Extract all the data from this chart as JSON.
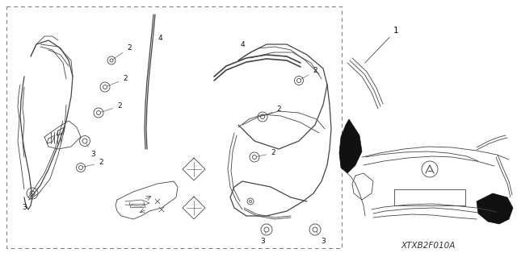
{
  "fig_width": 6.4,
  "fig_height": 3.19,
  "dpi": 100,
  "bg_color": "#ffffff",
  "line_color": "#444444",
  "label_color": "#111111",
  "label_fontsize": 6.5,
  "watermark": "XTXB2F010A",
  "watermark_fontsize": 7.5
}
